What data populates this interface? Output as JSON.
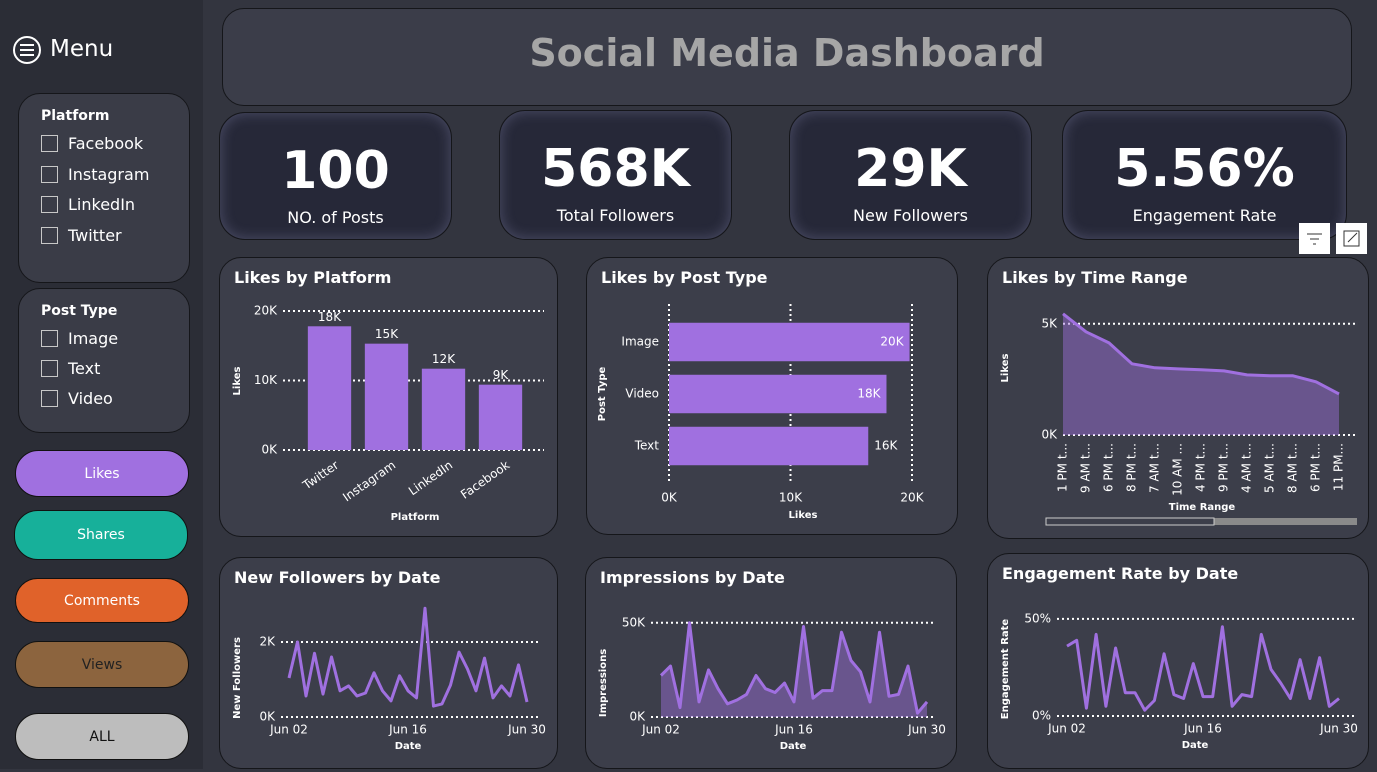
{
  "sidebar": {
    "menu": "Menu",
    "filters": [
      {
        "title": "Platform",
        "options": [
          "Facebook",
          "Instagram",
          "LinkedIn",
          "Twitter"
        ]
      },
      {
        "title": "Post Type",
        "options": [
          "Image",
          "Text",
          "Video"
        ]
      }
    ],
    "buttons": [
      "Likes",
      "Shares",
      "Comments",
      "Views",
      "ALL"
    ]
  },
  "header": {
    "title": "Social Media Dashboard"
  },
  "kpis": [
    {
      "value": "100",
      "label": "NO. of Posts"
    },
    {
      "value": "568K",
      "label": "Total Followers"
    },
    {
      "value": "29K",
      "label": "New Followers"
    },
    {
      "value": "5.56%",
      "label": "Engagement Rate"
    }
  ],
  "chart_data": [
    {
      "type": "bar",
      "title": "Likes by Platform",
      "x_label": "Platform",
      "y_label": "Likes",
      "categories": [
        "Twitter",
        "Instagram",
        "LinkedIn",
        "Facebook"
      ],
      "values": [
        17800,
        15300,
        11700,
        9400
      ],
      "value_labels": [
        "18K",
        "15K",
        "12K",
        "9K"
      ],
      "color": "#a070e0",
      "ylim": [
        0,
        20000
      ],
      "yticks": [
        {
          "value": 0,
          "label": "0K"
        },
        {
          "value": 10000,
          "label": "10K"
        },
        {
          "value": 20000,
          "label": "20K"
        }
      ],
      "grid": true
    },
    {
      "type": "bar",
      "orientation": "horizontal",
      "title": "Likes by Post Type",
      "x_label": "Likes",
      "y_label": "Post Type",
      "categories": [
        "Image",
        "Video",
        "Text"
      ],
      "values": [
        19800,
        17900,
        16400
      ],
      "value_labels": [
        "20K",
        "18K",
        "16K"
      ],
      "color": "#a070e0",
      "xlim": [
        0,
        20000
      ],
      "xticks": [
        {
          "value": 0,
          "label": "0K"
        },
        {
          "value": 10000,
          "label": "10K"
        },
        {
          "value": 20000,
          "label": "20K"
        }
      ],
      "grid": true
    },
    {
      "type": "area",
      "title": "Likes by Time Range",
      "x_label": "Time Range",
      "y_label": "Likes",
      "categories": [
        "1 PM t...",
        "9 AM t...",
        "6 PM t...",
        "8 PM t...",
        "7 AM t...",
        "10 AM ...",
        "4 PM t...",
        "9 PM t...",
        "4 AM t...",
        "5 AM t...",
        "8 AM t...",
        "6 PM t...",
        "11 PM..."
      ],
      "values": [
        5450,
        4640,
        4140,
        3200,
        3020,
        2970,
        2930,
        2880,
        2700,
        2660,
        2660,
        2390,
        1850
      ],
      "color": "#a070e0",
      "ylim": [
        0,
        5800
      ],
      "yticks": [
        {
          "value": 0,
          "label": "0K"
        },
        {
          "value": 5000,
          "label": "5K"
        }
      ],
      "grid": true
    },
    {
      "type": "line",
      "title": "New Followers by Date",
      "x_label": "Date",
      "y_label": "New Followers",
      "x": [
        "Jun 02",
        "Jun 03",
        "Jun 04",
        "Jun 05",
        "Jun 06",
        "Jun 07",
        "Jun 08",
        "Jun 09",
        "Jun 10",
        "Jun 11",
        "Jun 12",
        "Jun 13",
        "Jun 14",
        "Jun 15",
        "Jun 16",
        "Jun 17",
        "Jun 18",
        "Jun 19",
        "Jun 20",
        "Jun 21",
        "Jun 22",
        "Jun 23",
        "Jun 24",
        "Jun 25",
        "Jun 26",
        "Jun 27",
        "Jun 28",
        "Jun 29",
        "Jun 30"
      ],
      "xticks": [
        "Jun 02",
        "Jun 16",
        "Jun 30"
      ],
      "values": [
        1040,
        2000,
        560,
        1700,
        610,
        1600,
        700,
        830,
        560,
        640,
        1180,
        700,
        430,
        1100,
        700,
        510,
        2900,
        290,
        350,
        850,
        1730,
        1280,
        700,
        1570,
        510,
        830,
        560,
        1390,
        400
      ],
      "color": "#a070e0",
      "ylim": [
        0,
        3000
      ],
      "yticks": [
        {
          "value": 0,
          "label": "0K"
        },
        {
          "value": 2000,
          "label": "2K"
        }
      ],
      "grid": true
    },
    {
      "type": "area",
      "title": "Impressions by Date",
      "x_label": "Date",
      "y_label": "Impressions",
      "x": [
        "Jun 02",
        "Jun 03",
        "Jun 04",
        "Jun 05",
        "Jun 06",
        "Jun 07",
        "Jun 08",
        "Jun 09",
        "Jun 10",
        "Jun 11",
        "Jun 12",
        "Jun 13",
        "Jun 14",
        "Jun 15",
        "Jun 16",
        "Jun 17",
        "Jun 18",
        "Jun 19",
        "Jun 20",
        "Jun 21",
        "Jun 22",
        "Jun 23",
        "Jun 24",
        "Jun 25",
        "Jun 26",
        "Jun 27",
        "Jun 28",
        "Jun 29",
        "Jun 30"
      ],
      "xticks": [
        "Jun 02",
        "Jun 16",
        "Jun 30"
      ],
      "values": [
        22000,
        27000,
        5000,
        50000,
        8000,
        25000,
        15000,
        7000,
        9000,
        12000,
        22000,
        15000,
        13000,
        18000,
        8000,
        48000,
        10000,
        14000,
        14000,
        45000,
        30000,
        24000,
        8000,
        45000,
        11000,
        12000,
        27000,
        2000,
        8000
      ],
      "color": "#a070e0",
      "ylim": [
        0,
        52000
      ],
      "yticks": [
        {
          "value": 0,
          "label": "0K"
        },
        {
          "value": 50000,
          "label": "50K"
        }
      ],
      "grid": true
    },
    {
      "type": "line",
      "title": "Engagement Rate by Date",
      "x_label": "Date",
      "y_label": "Engagement Rate",
      "x": [
        "Jun 02",
        "Jun 03",
        "Jun 04",
        "Jun 05",
        "Jun 06",
        "Jun 07",
        "Jun 08",
        "Jun 09",
        "Jun 10",
        "Jun 11",
        "Jun 12",
        "Jun 13",
        "Jun 14",
        "Jun 15",
        "Jun 16",
        "Jun 17",
        "Jun 18",
        "Jun 19",
        "Jun 20",
        "Jun 21",
        "Jun 22",
        "Jun 23",
        "Jun 24",
        "Jun 25",
        "Jun 26",
        "Jun 27",
        "Jun 28",
        "Jun 29",
        "Jun 30"
      ],
      "xticks": [
        "Jun 02",
        "Jun 16",
        "Jun 30"
      ],
      "values": [
        36,
        39,
        4,
        42,
        5,
        35,
        12,
        12,
        3,
        8,
        32,
        11,
        9,
        27,
        10,
        10,
        46,
        5,
        11,
        10,
        42,
        24,
        17,
        9,
        29,
        9,
        30,
        5,
        9
      ],
      "color": "#a070e0",
      "ylim": [
        0,
        52
      ],
      "yticks": [
        {
          "value": 0,
          "label": "0%"
        },
        {
          "value": 50,
          "label": "50%"
        }
      ],
      "grid": true
    }
  ]
}
